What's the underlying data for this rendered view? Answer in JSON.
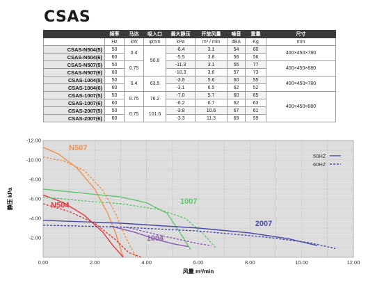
{
  "title": "CSAS",
  "table": {
    "headers": [
      "频率",
      "马达",
      "吸入口",
      "最大静压",
      "开放风量",
      "噪音",
      "重量",
      "尺寸"
    ],
    "units": [
      "Hz",
      "kW",
      "φmm",
      "kPa",
      "m³ / min",
      "dBA",
      "Kg",
      "mm"
    ],
    "rows": [
      {
        "model": "CSAS-N504(5)",
        "hz": "50",
        "pressure": "-6.4",
        "flow": "3.1",
        "noise": "54",
        "weight": "60"
      },
      {
        "model": "CSAS-N504(6)",
        "hz": "60",
        "pressure": "-5.5",
        "flow": "3.8",
        "noise": "56",
        "weight": "56"
      },
      {
        "model": "CSAS-N507(5)",
        "hz": "50",
        "pressure": "-11.3",
        "flow": "3.1",
        "noise": "55",
        "weight": "77"
      },
      {
        "model": "CSAS-N507(6)",
        "hz": "60",
        "pressure": "-10.3",
        "flow": "3.6",
        "noise": "57",
        "weight": "73"
      },
      {
        "model": "CSAS-1004(5)",
        "hz": "50",
        "pressure": "-3.6",
        "flow": "5.6",
        "noise": "60",
        "weight": "55"
      },
      {
        "model": "CSAS-1004(6)",
        "hz": "60",
        "pressure": "-3.1",
        "flow": "6.5",
        "noise": "62",
        "weight": "52"
      },
      {
        "model": "CSAS-1007(5)",
        "hz": "50",
        "pressure": "-7.0",
        "flow": "5.7",
        "noise": "60",
        "weight": "65"
      },
      {
        "model": "CSAS-1007(6)",
        "hz": "60",
        "pressure": "-6.2",
        "flow": "6.7",
        "noise": "62",
        "weight": "63"
      },
      {
        "model": "CSAS-2007(5)",
        "hz": "50",
        "pressure": "-3.8",
        "flow": "10.6",
        "noise": "67",
        "weight": "61"
      },
      {
        "model": "CSAS-2007(6)",
        "hz": "60",
        "pressure": "-3.3",
        "flow": "11.3",
        "noise": "69",
        "weight": "59"
      }
    ],
    "motor": [
      "0.4",
      "0.75",
      "0.4",
      "0.75",
      "0.75"
    ],
    "inlet": [
      "50.8",
      "63.5",
      "76.2",
      "101.6"
    ],
    "size": [
      "400×450×780",
      "400×450×880",
      "400×450×780",
      "400×450×880"
    ]
  },
  "chart_data": {
    "type": "line",
    "xlabel": "风量 m³/min",
    "ylabel": "静压 kPa",
    "xlim": [
      0,
      12
    ],
    "ylim": [
      -12,
      0
    ],
    "x_ticks": [
      "0.00",
      "2.00",
      "4.00",
      "6.00",
      "8.00",
      "10.00",
      "12.00"
    ],
    "y_ticks": [
      "-12.00",
      "-10.00",
      "-8.00",
      "-6.00",
      "-4.00",
      "-2.00"
    ],
    "grid": true,
    "legend_position": "top-right",
    "legend": [
      {
        "label": "50HZ",
        "style": "solid"
      },
      {
        "label": "60HZ",
        "style": "dashed"
      }
    ],
    "series": [
      {
        "name": "N507",
        "color": "#f0924e",
        "label_pos": [
          1.0,
          -11.0
        ],
        "s50": [
          [
            0,
            -11.3
          ],
          [
            0.6,
            -10.6
          ],
          [
            1.3,
            -9.2
          ],
          [
            2.0,
            -7.0
          ],
          [
            2.5,
            -4.5
          ],
          [
            2.8,
            -2.5
          ],
          [
            3.1,
            0
          ]
        ],
        "s60": [
          [
            0,
            -10.3
          ],
          [
            0.8,
            -9.9
          ],
          [
            1.6,
            -8.9
          ],
          [
            2.3,
            -6.9
          ],
          [
            2.8,
            -4.5
          ],
          [
            3.2,
            -2.0
          ],
          [
            3.6,
            0
          ]
        ]
      },
      {
        "name": "N504",
        "color": "#e2363c",
        "label_pos": [
          0.3,
          -5.1
        ],
        "s50": [
          [
            0,
            -6.4
          ],
          [
            0.8,
            -5.6
          ],
          [
            1.6,
            -4.3
          ],
          [
            2.3,
            -2.6
          ],
          [
            2.7,
            -1.2
          ],
          [
            3.1,
            0
          ]
        ],
        "s60": [
          [
            0,
            -5.5
          ],
          [
            1.0,
            -4.7
          ],
          [
            2.0,
            -3.5
          ],
          [
            2.8,
            -1.8
          ],
          [
            3.3,
            -0.5
          ],
          [
            3.8,
            0
          ]
        ]
      },
      {
        "name": "1007",
        "color": "#62c472",
        "label_pos": [
          5.3,
          -5.5
        ],
        "s50": [
          [
            0,
            -7.0
          ],
          [
            1.5,
            -6.6
          ],
          [
            3.0,
            -6.2
          ],
          [
            4.0,
            -5.6
          ],
          [
            4.8,
            -4.5
          ],
          [
            5.3,
            -2.5
          ],
          [
            5.7,
            -0.8
          ]
        ],
        "s60": [
          [
            0,
            -6.2
          ],
          [
            1.5,
            -5.8
          ],
          [
            3.0,
            -5.5
          ],
          [
            4.5,
            -4.9
          ],
          [
            5.5,
            -4.0
          ],
          [
            6.2,
            -2.4
          ],
          [
            6.7,
            -0.9
          ]
        ]
      },
      {
        "name": "1004",
        "color": "#8c5ab2",
        "label_pos": [
          4.0,
          -1.7
        ],
        "s50": [
          [
            2.6,
            -3.2
          ],
          [
            3.5,
            -2.6
          ],
          [
            4.3,
            -1.9
          ],
          [
            5.0,
            -1.4
          ],
          [
            5.6,
            -1.1
          ]
        ],
        "s60": [
          [
            3.2,
            -3.1
          ],
          [
            4.3,
            -2.4
          ],
          [
            5.3,
            -1.8
          ],
          [
            6.0,
            -1.4
          ],
          [
            6.5,
            -1.2
          ]
        ]
      },
      {
        "name": "2007",
        "color": "#4b4ba4",
        "label_pos": [
          8.2,
          -3.2
        ],
        "s50": [
          [
            0,
            -3.8
          ],
          [
            3.0,
            -3.5
          ],
          [
            6.0,
            -3.0
          ],
          [
            8.0,
            -2.5
          ],
          [
            9.5,
            -1.9
          ],
          [
            10.6,
            -1.2
          ]
        ],
        "s60": [
          [
            0,
            -3.3
          ],
          [
            3.0,
            -3.1
          ],
          [
            6.0,
            -2.7
          ],
          [
            8.5,
            -2.1
          ],
          [
            10.3,
            -1.5
          ],
          [
            11.3,
            -0.9
          ]
        ]
      }
    ]
  }
}
